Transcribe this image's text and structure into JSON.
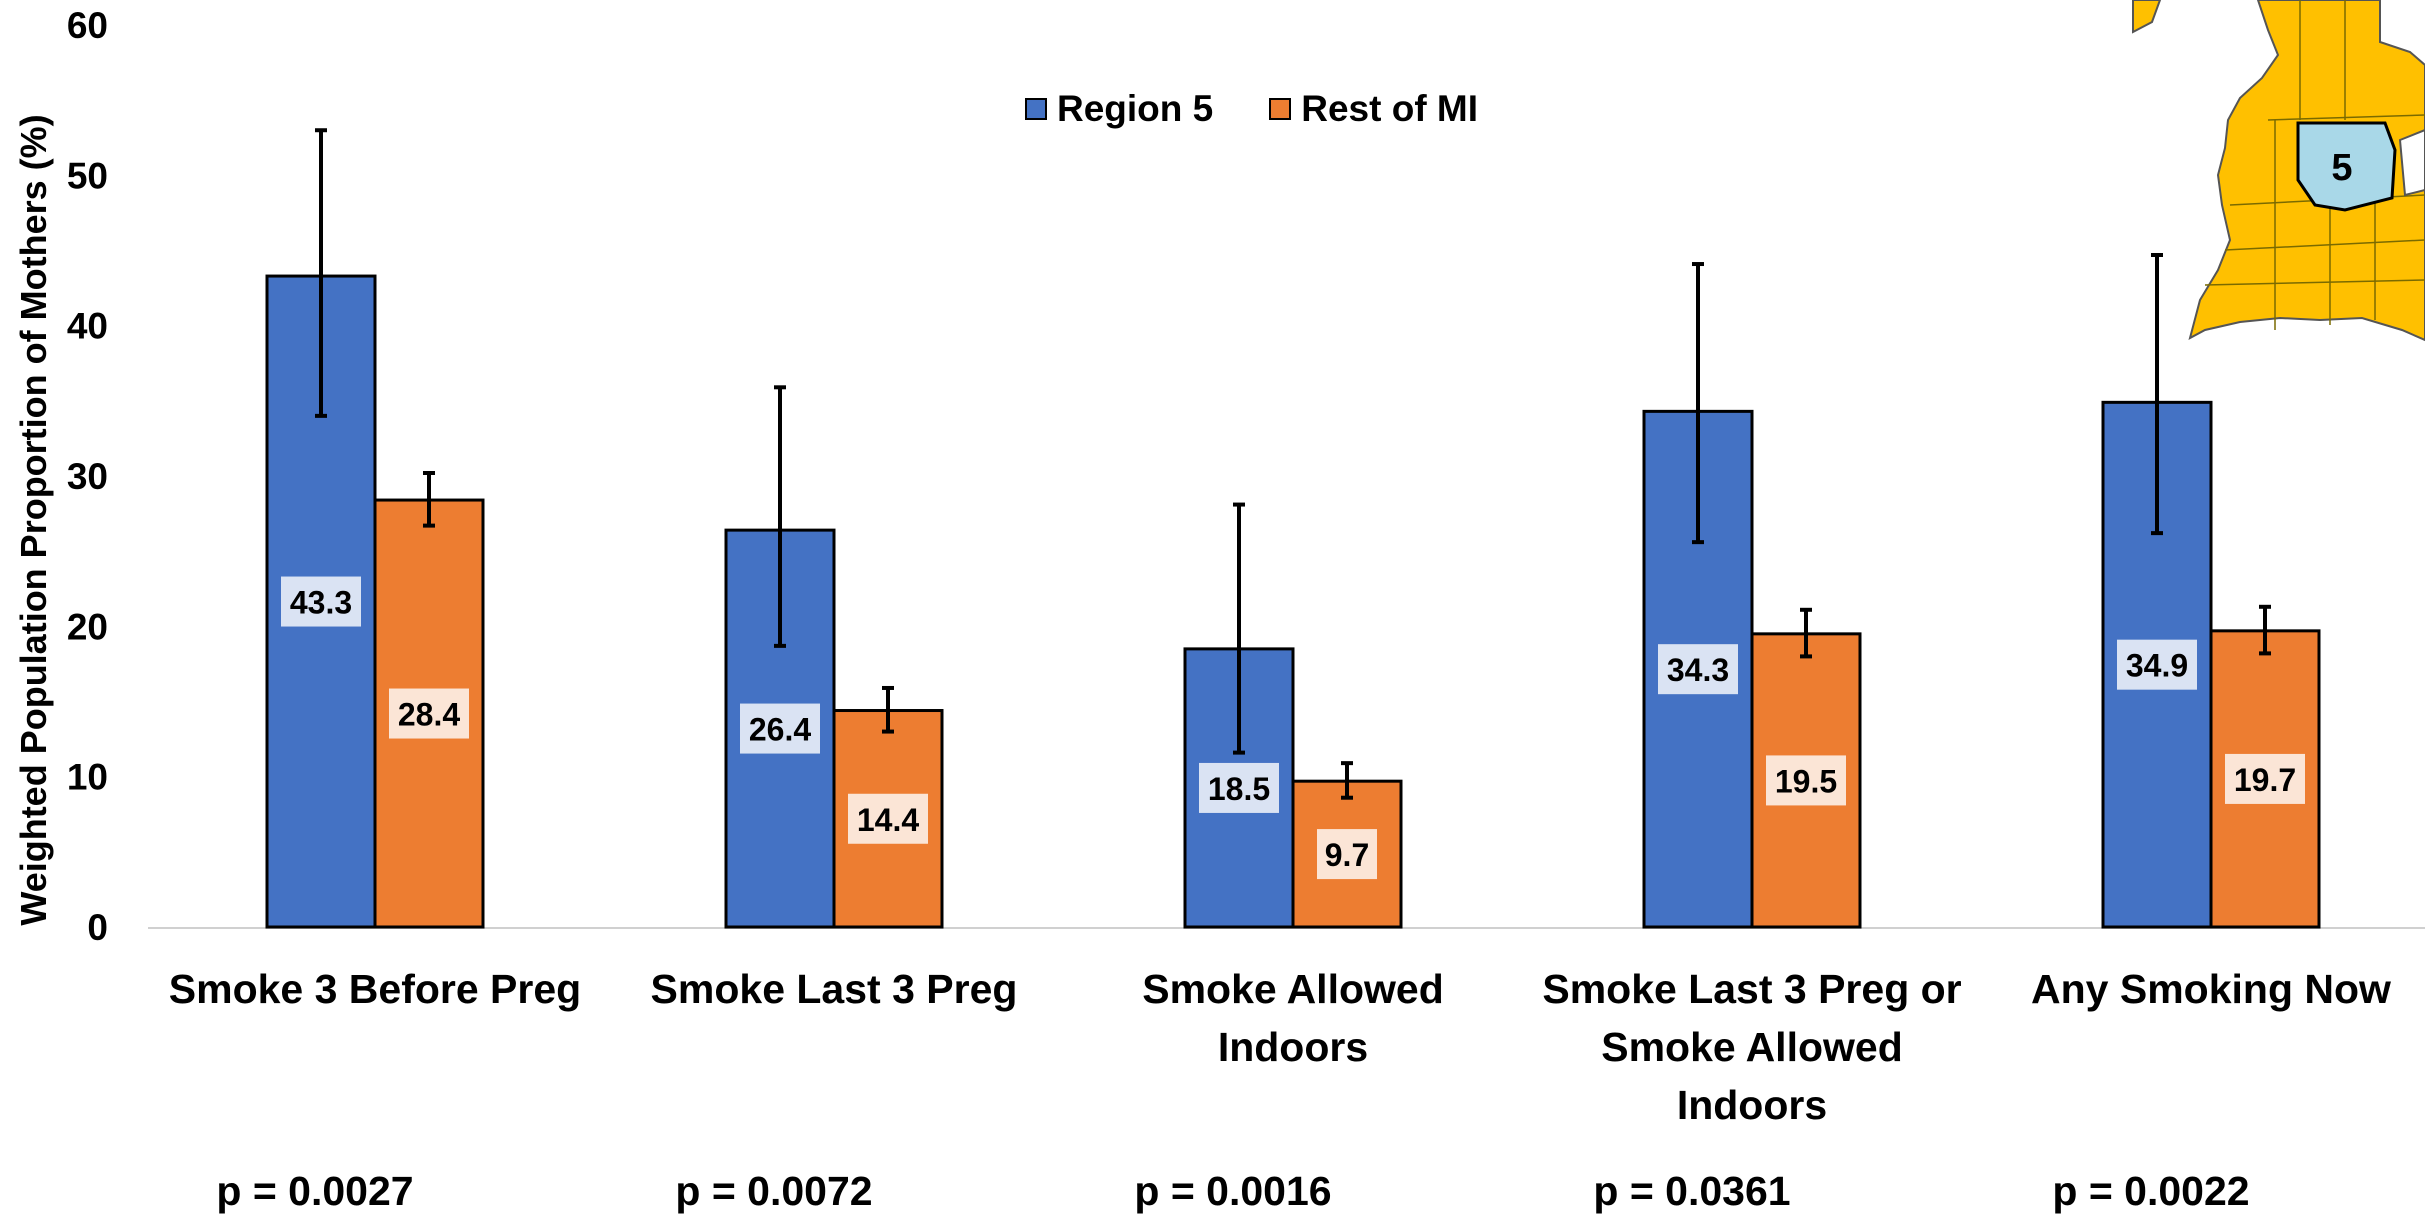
{
  "colors": {
    "region5": "#4472C4",
    "rest_of_mi": "#ED7D31",
    "map_land": "#FFC000",
    "map_region": "#A9D8E8"
  },
  "legend": {
    "region5": "Region 5",
    "rest_of_mi": "Rest of MI"
  },
  "map": {
    "region_label": "5"
  },
  "chart_data": {
    "type": "bar",
    "title": "",
    "xlabel": "",
    "ylabel": "Weighted Population Proportion of Mothers (%)",
    "ylim": [
      0,
      60
    ],
    "yticks": [
      "0",
      "10",
      "20",
      "30",
      "40",
      "50",
      "60"
    ],
    "grid": false,
    "legend_position": "top-center",
    "categories": [
      [
        "Smoke 3 Before Preg"
      ],
      [
        "Smoke Last 3 Preg"
      ],
      [
        "Smoke Allowed",
        "Indoors"
      ],
      [
        "Smoke Last 3 Preg or",
        "Smoke Allowed",
        "Indoors"
      ],
      [
        "Any Smoking Now"
      ]
    ],
    "series": [
      {
        "name": "Region 5",
        "values": [
          43.3,
          26.4,
          18.5,
          34.3,
          34.9
        ],
        "labels": [
          "43.3",
          "26.4",
          "18.5",
          "34.3",
          "34.9"
        ],
        "error_low": [
          34.0,
          18.7,
          11.6,
          25.6,
          26.2
        ],
        "error_high": [
          53.0,
          35.9,
          28.1,
          44.1,
          44.7
        ]
      },
      {
        "name": "Rest of MI",
        "values": [
          28.4,
          14.4,
          9.7,
          19.5,
          19.7
        ],
        "labels": [
          "28.4",
          "14.4",
          "9.7",
          "19.5",
          "19.7"
        ],
        "error_low": [
          26.7,
          13.0,
          8.6,
          18.0,
          18.2
        ],
        "error_high": [
          30.2,
          15.9,
          10.9,
          21.1,
          21.3
        ]
      }
    ],
    "p_values": [
      "p = 0.0027",
      "p = 0.0072",
      "p = 0.0016",
      "p = 0.0361",
      "p = 0.0022"
    ]
  }
}
